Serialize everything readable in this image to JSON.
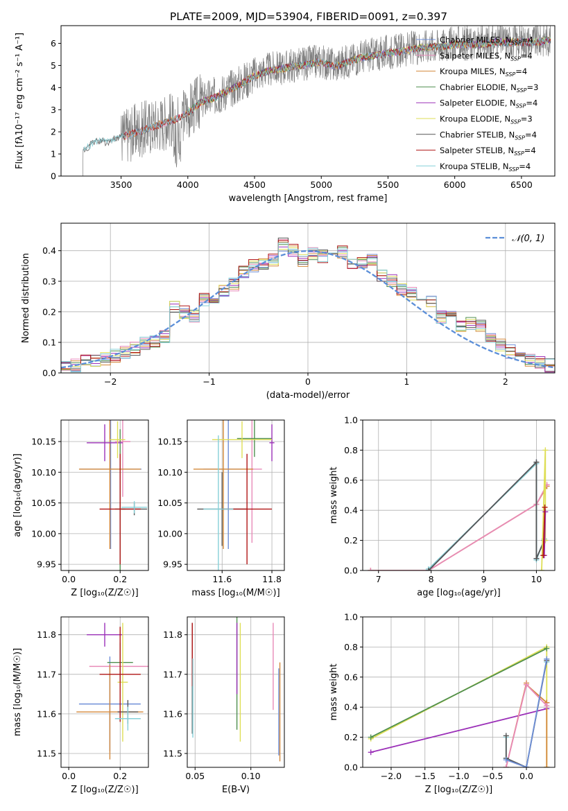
{
  "figure_title": "PLATE=2009, MJD=53904, FIBERID=0091, z=0.397",
  "colors": {
    "Chabrier MILES": "#6f8fd8",
    "Salpeter MILES": "#e88ab8",
    "Kroupa MILES": "#d3883a",
    "Chabrier ELODIE": "#4f8f4f",
    "Salpeter ELODIE": "#9b30b8",
    "Kroupa ELODIE": "#dede55",
    "Chabrier STELIB": "#555555",
    "Salpeter STELIB": "#b01515",
    "Kroupa STELIB": "#86d0d8",
    "normal": "#5b8ed8",
    "grid": "#b0b0b0"
  },
  "chart_data": [
    {
      "type": "line",
      "name": "spectrum",
      "title": "PLATE=2009, MJD=53904, FIBERID=0091, z=0.397",
      "xlabel": "wavelength [Angstrom, rest frame]",
      "ylabel": "Flux [fλ10⁻¹⁷ erg cm⁻² s⁻¹ A⁻¹]",
      "xlim": [
        3050,
        6750
      ],
      "ylim": [
        0,
        6.8
      ],
      "xticks": [
        3500,
        4000,
        4500,
        5000,
        5500,
        6000,
        6500
      ],
      "yticks": [
        0,
        1,
        2,
        3,
        4,
        5,
        6
      ],
      "grid": false,
      "legend": "top-right",
      "data_envelope": {
        "x": [
          3220,
          3300,
          3400,
          3500,
          3600,
          3700,
          3800,
          3900,
          4000,
          4100,
          4200,
          4300,
          4400,
          4500,
          4600,
          4700,
          4800,
          4900,
          5000,
          5100,
          5200,
          5300,
          5400,
          5500,
          5600,
          5700,
          5800,
          5900,
          6000,
          6100,
          6200,
          6300,
          6400,
          6500,
          6600,
          6700
        ],
        "y": [
          1.2,
          1.6,
          1.6,
          1.8,
          2.0,
          2.2,
          2.4,
          2.6,
          2.9,
          3.4,
          3.6,
          3.9,
          4.2,
          4.6,
          4.8,
          4.9,
          5.0,
          5.1,
          5.2,
          5.0,
          5.2,
          5.4,
          5.5,
          5.6,
          5.7,
          5.8,
          5.9,
          5.9,
          6.0,
          6.0,
          6.0,
          6.1,
          6.1,
          6.1,
          6.1,
          6.2
        ]
      },
      "legend_entries": [
        {
          "label": "Chabrier MILES, N",
          "sub": "SSP",
          "tail": "=4"
        },
        {
          "label": "Salpeter MILES, N",
          "sub": "SSP",
          "tail": "=4"
        },
        {
          "label": "Kroupa MILES, N",
          "sub": "SSP",
          "tail": "=4"
        },
        {
          "label": "Chabrier ELODIE, N",
          "sub": "SSP",
          "tail": "=3"
        },
        {
          "label": "Salpeter ELODIE, N",
          "sub": "SSP",
          "tail": "=4"
        },
        {
          "label": "Kroupa ELODIE, N",
          "sub": "SSP",
          "tail": "=3"
        },
        {
          "label": "Chabrier STELIB, N",
          "sub": "SSP",
          "tail": "=4"
        },
        {
          "label": "Salpeter STELIB, N",
          "sub": "SSP",
          "tail": "=4"
        },
        {
          "label": "Kroupa STELIB, N",
          "sub": "SSP",
          "tail": "=4"
        }
      ]
    },
    {
      "type": "line",
      "name": "residual-histogram",
      "xlabel": "(data-model)/error",
      "ylabel": "Normed distribution",
      "xlim": [
        -2.5,
        2.5
      ],
      "ylim": [
        0,
        0.49
      ],
      "xticks": [
        -2,
        -1,
        0,
        1,
        2
      ],
      "xtick_labels": [
        "−2",
        "−1",
        "0",
        "1",
        "2"
      ],
      "yticks": [
        0.0,
        0.1,
        0.2,
        0.3,
        0.4
      ],
      "grid": true,
      "legend": "top-right",
      "normal_legend": "𝒩(0, 1)",
      "bin_width": 0.1,
      "x": [
        -2.5,
        -2.4,
        -2.3,
        -2.2,
        -2.1,
        -2.0,
        -1.9,
        -1.8,
        -1.7,
        -1.6,
        -1.5,
        -1.4,
        -1.3,
        -1.2,
        -1.1,
        -1.0,
        -0.9,
        -0.8,
        -0.7,
        -0.6,
        -0.5,
        -0.4,
        -0.3,
        -0.2,
        -0.1,
        0.0,
        0.1,
        0.2,
        0.3,
        0.4,
        0.5,
        0.6,
        0.7,
        0.8,
        0.9,
        1.0,
        1.1,
        1.2,
        1.3,
        1.4,
        1.5,
        1.6,
        1.7,
        1.8,
        1.9,
        2.0,
        2.1,
        2.2,
        2.3,
        2.4
      ],
      "mean_density": [
        0.025,
        0.025,
        0.045,
        0.04,
        0.045,
        0.055,
        0.07,
        0.08,
        0.095,
        0.105,
        0.12,
        0.215,
        0.2,
        0.185,
        0.24,
        0.25,
        0.27,
        0.29,
        0.33,
        0.35,
        0.36,
        0.37,
        0.42,
        0.4,
        0.37,
        0.39,
        0.38,
        0.37,
        0.395,
        0.36,
        0.36,
        0.37,
        0.32,
        0.3,
        0.27,
        0.26,
        0.24,
        0.23,
        0.18,
        0.205,
        0.15,
        0.16,
        0.15,
        0.11,
        0.09,
        0.07,
        0.06,
        0.04,
        0.035,
        0.025
      ]
    },
    {
      "type": "scatter",
      "name": "age-vs-Z",
      "xlabel": "Z [log₁₀(Z/Z☉)]",
      "ylabel": "age  [log₁₀(age/yr)]",
      "xlim": [
        -0.03,
        0.31
      ],
      "ylim": [
        9.94,
        10.185
      ],
      "xticks": [
        0.0,
        0.2
      ],
      "xtick_labels": [
        "0.0",
        "0.2"
      ],
      "yticks": [
        9.95,
        10.0,
        10.05,
        10.1,
        10.15
      ],
      "grid": true,
      "points": [
        {
          "model": "Chabrier MILES",
          "x": 0.163,
          "y": 10.105,
          "xerr": 0.12,
          "yerr": 0.13
        },
        {
          "model": "Salpeter MILES",
          "x": 0.21,
          "y": 10.15,
          "xerr": 0.03,
          "yerr": 0.09
        },
        {
          "model": "Kroupa MILES",
          "x": 0.16,
          "y": 10.105,
          "xerr": 0.12,
          "yerr": 0.13
        },
        {
          "model": "Chabrier ELODIE",
          "x": 0.2,
          "y": 10.04,
          "xerr": 0.02,
          "yerr": 0.13
        },
        {
          "model": "Salpeter ELODIE",
          "x": 0.14,
          "y": 10.148,
          "xerr": 0.07,
          "yerr": 0.03
        },
        {
          "model": "Kroupa ELODIE",
          "x": 0.19,
          "y": 10.153,
          "xerr": 0.03,
          "yerr": 0.03
        },
        {
          "model": "Chabrier STELIB",
          "x": 0.255,
          "y": 10.04,
          "xerr": 0.05,
          "yerr": 0.01
        },
        {
          "model": "Salpeter STELIB",
          "x": 0.2,
          "y": 10.04,
          "xerr": 0.08,
          "yerr": 0.09
        },
        {
          "model": "Kroupa STELIB",
          "x": 0.255,
          "y": 10.043,
          "xerr": 0.05,
          "yerr": 0.01
        }
      ]
    },
    {
      "type": "scatter",
      "name": "age-vs-mass",
      "xlabel": "mass [log₁₀(M/M☉)]",
      "ylabel": "",
      "xlim": [
        11.46,
        11.85
      ],
      "ylim": [
        9.94,
        10.185
      ],
      "xticks": [
        11.6,
        11.8
      ],
      "xtick_labels": [
        "11.6",
        "11.8"
      ],
      "yticks": [
        9.95,
        10.0,
        10.05,
        10.1,
        10.15
      ],
      "grid": true,
      "points": [
        {
          "model": "Chabrier MILES",
          "x": 11.625,
          "y": 10.105,
          "xerr": 0.1,
          "yerr": 0.13
        },
        {
          "model": "Salpeter MILES",
          "x": 11.72,
          "y": 10.105,
          "xerr": 0.04,
          "yerr": 0.12
        },
        {
          "model": "Kroupa MILES",
          "x": 11.605,
          "y": 10.105,
          "xerr": 0.12,
          "yerr": 0.13
        },
        {
          "model": "Chabrier ELODIE",
          "x": 11.73,
          "y": 10.155,
          "xerr": 0.07,
          "yerr": 0.03
        },
        {
          "model": "Salpeter ELODIE",
          "x": 11.8,
          "y": 10.148,
          "xerr": 0.01,
          "yerr": 0.03
        },
        {
          "model": "Kroupa ELODIE",
          "x": 11.68,
          "y": 10.153,
          "xerr": 0.12,
          "yerr": 0.03
        },
        {
          "model": "Chabrier STELIB",
          "x": 11.6,
          "y": 10.04,
          "xerr": 0.1,
          "yerr": 0.06
        },
        {
          "model": "Salpeter STELIB",
          "x": 11.7,
          "y": 10.04,
          "xerr": 0.1,
          "yerr": 0.09
        },
        {
          "model": "Kroupa STELIB",
          "x": 11.585,
          "y": 10.04,
          "xerr": 0.06,
          "yerr": 0.12
        }
      ]
    },
    {
      "type": "line",
      "name": "weight-vs-age",
      "xlabel": "age  [log₁₀(age/yr)]",
      "ylabel": "mass weight",
      "xlim": [
        6.7,
        10.35
      ],
      "ylim": [
        0,
        1.0
      ],
      "xticks": [
        7,
        8,
        9,
        10
      ],
      "yticks": [
        0.0,
        0.2,
        0.4,
        0.6,
        0.8,
        1.0
      ],
      "grid": true,
      "series": [
        {
          "model": "Kroupa MILES",
          "x": [
            6.85,
            7.95,
            10.0,
            10.2
          ],
          "y": [
            0.0,
            0.0,
            0.44,
            0.56
          ]
        },
        {
          "model": "Salpeter MILES",
          "x": [
            6.85,
            7.95,
            10.0,
            10.2
          ],
          "y": [
            0.0,
            0.0,
            0.44,
            0.57
          ]
        },
        {
          "model": "Chabrier MILES",
          "x": [
            7.95,
            10.0,
            10.0,
            10.15
          ],
          "y": [
            0.0,
            0.72,
            0.08,
            0.2
          ]
        },
        {
          "model": "Kroupa STELIB",
          "x": [
            7.95,
            10.0,
            10.0,
            10.15
          ],
          "y": [
            0.01,
            0.71,
            0.07,
            0.21
          ]
        },
        {
          "model": "Chabrier STELIB",
          "x": [
            7.95,
            10.0,
            10.0,
            10.15
          ],
          "y": [
            0.0,
            0.72,
            0.08,
            0.2
          ]
        },
        {
          "model": "Kroupa ELODIE",
          "x": [
            10.1,
            10.17,
            10.17
          ],
          "y": [
            0.0,
            0.8,
            0.2
          ]
        },
        {
          "model": "Salpeter ELODIE",
          "x": [
            10.15,
            10.17
          ],
          "y": [
            0.1,
            0.39
          ]
        },
        {
          "model": "Salpeter STELIB",
          "x": [
            10.13,
            10.16
          ],
          "y": [
            0.1,
            0.42
          ]
        }
      ]
    },
    {
      "type": "scatter",
      "name": "mass-vs-Z",
      "xlabel": "Z [log₁₀(Z/Z☉)]",
      "ylabel": "mass [log₁₀(M/M☉)]",
      "xlim": [
        -0.03,
        0.31
      ],
      "ylim": [
        11.465,
        11.845
      ],
      "xticks": [
        0.0,
        0.2
      ],
      "xtick_labels": [
        "0.0",
        "0.2"
      ],
      "yticks": [
        11.5,
        11.6,
        11.7,
        11.8
      ],
      "grid": true,
      "points": [
        {
          "model": "Chabrier MILES",
          "x": 0.16,
          "y": 11.625,
          "xerr": 0.12,
          "yerr": 0.12
        },
        {
          "model": "Salpeter MILES",
          "x": 0.2,
          "y": 11.72,
          "xerr": 0.12,
          "yerr": 0.03
        },
        {
          "model": "Kroupa MILES",
          "x": 0.16,
          "y": 11.605,
          "xerr": 0.13,
          "yerr": 0.12
        },
        {
          "model": "Chabrier ELODIE",
          "x": 0.2,
          "y": 11.73,
          "xerr": 0.05,
          "yerr": 0.05
        },
        {
          "model": "Salpeter ELODIE",
          "x": 0.14,
          "y": 11.8,
          "xerr": 0.07,
          "yerr": 0.03
        },
        {
          "model": "Kroupa ELODIE",
          "x": 0.21,
          "y": 11.68,
          "xerr": 0.02,
          "yerr": 0.15
        },
        {
          "model": "Chabrier STELIB",
          "x": 0.23,
          "y": 11.605,
          "xerr": 0.04,
          "yerr": 0.03
        },
        {
          "model": "Salpeter STELIB",
          "x": 0.2,
          "y": 11.7,
          "xerr": 0.08,
          "yerr": 0.12
        },
        {
          "model": "Kroupa STELIB",
          "x": 0.23,
          "y": 11.588,
          "xerr": 0.05,
          "yerr": 0.03
        }
      ]
    },
    {
      "type": "scatter",
      "name": "mass-vs-ebv",
      "xlabel": "E(B-V)",
      "ylabel": "",
      "xlim": [
        0.043,
        0.13
      ],
      "ylim": [
        11.465,
        11.845
      ],
      "xticks": [
        0.05,
        0.1
      ],
      "xtick_labels": [
        "0.05",
        "0.10"
      ],
      "yticks": [
        11.5,
        11.6,
        11.7,
        11.8
      ],
      "grid": true,
      "points": [
        {
          "model": "Chabrier MILES",
          "x": 0.125,
          "y": 11.605,
          "xerr": 0,
          "yerr": 0.11
        },
        {
          "model": "Salpeter MILES",
          "x": 0.12,
          "y": 11.72,
          "xerr": 0,
          "yerr": 0.11
        },
        {
          "model": "Kroupa MILES",
          "x": 0.126,
          "y": 11.605,
          "xerr": 0,
          "yerr": 0.125
        },
        {
          "model": "Chabrier ELODIE",
          "x": 0.0875,
          "y": 11.73,
          "xerr": 0,
          "yerr": 0.17
        },
        {
          "model": "Salpeter ELODIE",
          "x": 0.0875,
          "y": 11.74,
          "xerr": 0,
          "yerr": 0.09
        },
        {
          "model": "Kroupa ELODIE",
          "x": 0.0905,
          "y": 11.68,
          "xerr": 0,
          "yerr": 0.15
        },
        {
          "model": "Chabrier STELIB",
          "x": 0.0475,
          "y": 11.69,
          "xerr": 0,
          "yerr": 0.14
        },
        {
          "model": "Salpeter STELIB",
          "x": 0.0475,
          "y": 11.75,
          "xerr": 0,
          "yerr": 0.08
        },
        {
          "model": "Kroupa STELIB",
          "x": 0.048,
          "y": 11.64,
          "xerr": 0,
          "yerr": 0.1
        }
      ]
    },
    {
      "type": "line",
      "name": "weight-vs-Z",
      "xlabel": "Z [log₁₀(Z/Z☉)]",
      "ylabel": "mass weight",
      "xlim": [
        -2.42,
        0.42
      ],
      "ylim": [
        0,
        1.0
      ],
      "xticks": [
        -2.0,
        -1.5,
        -1.0,
        -0.5,
        0.0
      ],
      "xtick_labels": [
        "−2.0",
        "−1.5",
        "−1.0",
        "−0.5",
        "0.0"
      ],
      "yticks": [
        0.0,
        0.2,
        0.4,
        0.6,
        0.8,
        1.0
      ],
      "grid": true,
      "series": [
        {
          "model": "Kroupa ELODIE",
          "x": [
            -2.3,
            0.3,
            0.3
          ],
          "y": [
            0.19,
            0.8,
            0.0
          ]
        },
        {
          "model": "Chabrier ELODIE",
          "x": [
            -2.3,
            0.3
          ],
          "y": [
            0.2,
            0.79
          ]
        },
        {
          "model": "Salpeter ELODIE",
          "x": [
            -2.3,
            0.3,
            0.3
          ],
          "y": [
            0.1,
            0.39,
            0.43
          ]
        },
        {
          "model": "Kroupa MILES",
          "x": [
            -0.3,
            0.0,
            0.0,
            0.3,
            0.3
          ],
          "y": [
            0.0,
            0.56,
            0.55,
            0.43,
            0.0
          ]
        },
        {
          "model": "Salpeter MILES",
          "x": [
            -0.3,
            0.0,
            0.3
          ],
          "y": [
            0.0,
            0.55,
            0.41
          ]
        },
        {
          "model": "Kroupa STELIB",
          "x": [
            -0.3,
            -0.3,
            0.0,
            0.3,
            0.3
          ],
          "y": [
            0.2,
            0.06,
            0.0,
            0.72,
            0.7
          ]
        },
        {
          "model": "Chabrier STELIB",
          "x": [
            -0.3,
            -0.3,
            0.0,
            0.3
          ],
          "y": [
            0.21,
            0.06,
            0.0,
            0.71
          ]
        },
        {
          "model": "Chabrier MILES",
          "x": [
            -0.3,
            0.0,
            0.3
          ],
          "y": [
            0.05,
            0.0,
            0.72
          ]
        }
      ]
    }
  ]
}
